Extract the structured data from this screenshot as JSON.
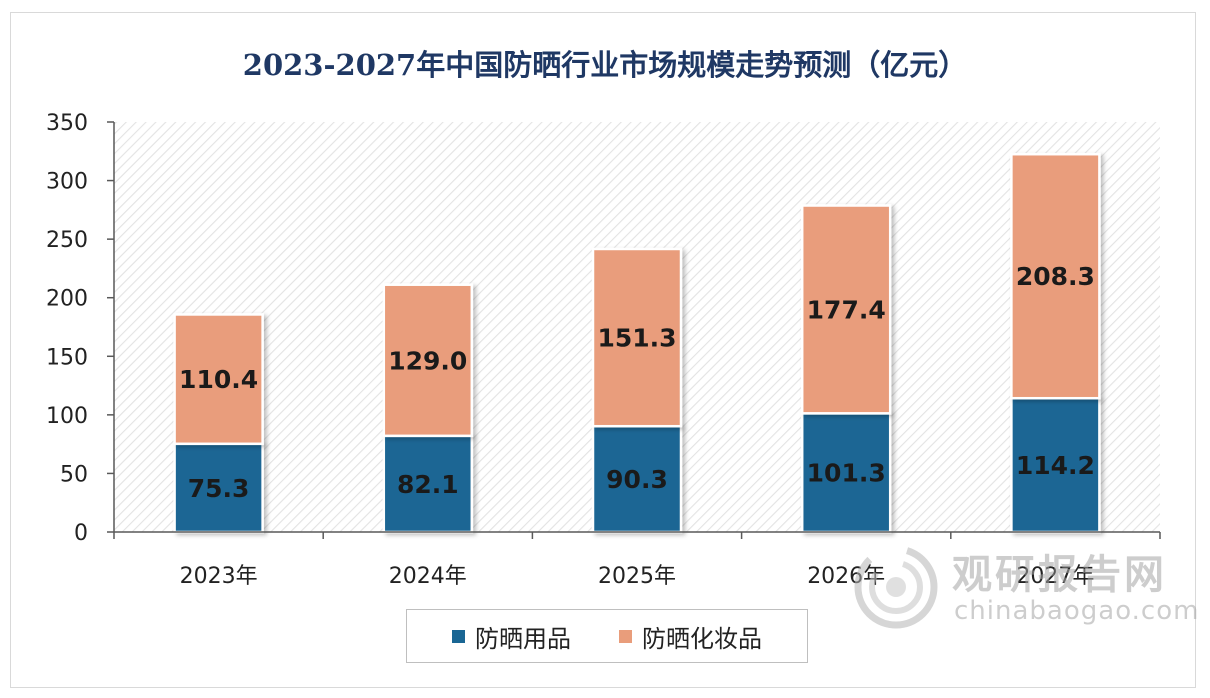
{
  "chart_data": {
    "type": "bar",
    "stacked": true,
    "title": "2023-2027年中国防晒行业市场规模走势预测（亿元）",
    "categories": [
      "2023年",
      "2024年",
      "2025年",
      "2026年",
      "2027年"
    ],
    "series": [
      {
        "name": "防晒用品",
        "color": "#1a6694",
        "values": [
          75.3,
          82.1,
          90.3,
          101.3,
          114.2
        ],
        "labels": [
          "75.3",
          "82.1",
          "90.3",
          "101.3",
          "114.2"
        ]
      },
      {
        "name": "防晒化妆品",
        "color": "#e99d7b",
        "values": [
          110.4,
          129.0,
          151.3,
          177.4,
          208.3
        ],
        "labels": [
          "110.4",
          "129.0",
          "151.3",
          "177.4",
          "208.3"
        ]
      }
    ],
    "ylim": [
      0,
      350
    ],
    "yticks": [
      0,
      50,
      100,
      150,
      200,
      250,
      300,
      350
    ],
    "xlabel": "",
    "ylabel": "",
    "legend_position": "bottom"
  },
  "watermark": {
    "cn": "观研报告网",
    "en": "chinabaogao.com"
  }
}
